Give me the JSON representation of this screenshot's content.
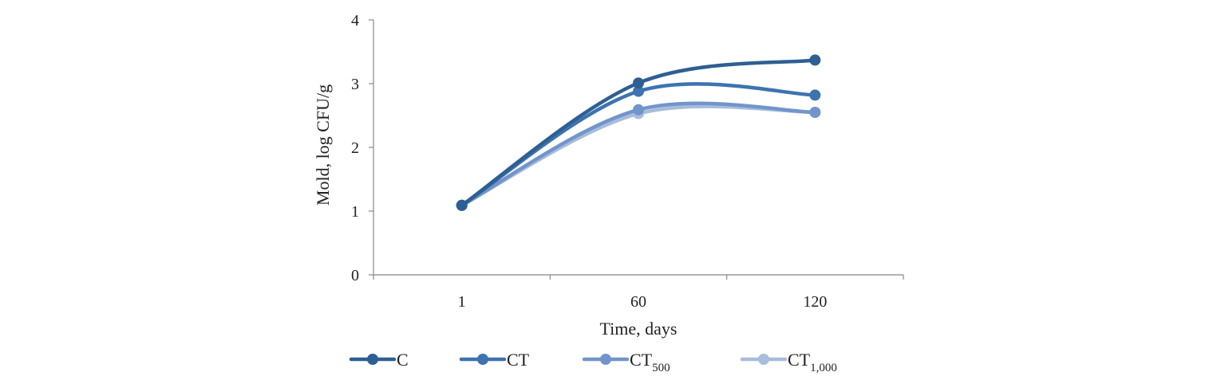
{
  "chart_data": {
    "type": "line",
    "title": "",
    "xlabel": "Time, days",
    "ylabel": "Mold, log CFU/g",
    "categories": [
      "1",
      "60",
      "120"
    ],
    "ylim": [
      0,
      4
    ],
    "yticks": [
      "0",
      "1",
      "2",
      "3",
      "4"
    ],
    "grid": false,
    "legend_position": "bottom",
    "smooth": true,
    "series": [
      {
        "name": "C",
        "sub": "",
        "color": "#2e5f93",
        "values": [
          1.09,
          3.01,
          3.37
        ]
      },
      {
        "name": "CT",
        "sub": "",
        "color": "#3d73b0",
        "values": [
          1.09,
          2.88,
          2.82
        ]
      },
      {
        "name": "CT",
        "sub": "500",
        "color": "#7195cb",
        "values": [
          1.09,
          2.59,
          2.55
        ]
      },
      {
        "name": "CT",
        "sub": "1,000",
        "color": "#a8bcdc",
        "values": [
          1.09,
          2.53,
          2.55
        ]
      }
    ]
  }
}
